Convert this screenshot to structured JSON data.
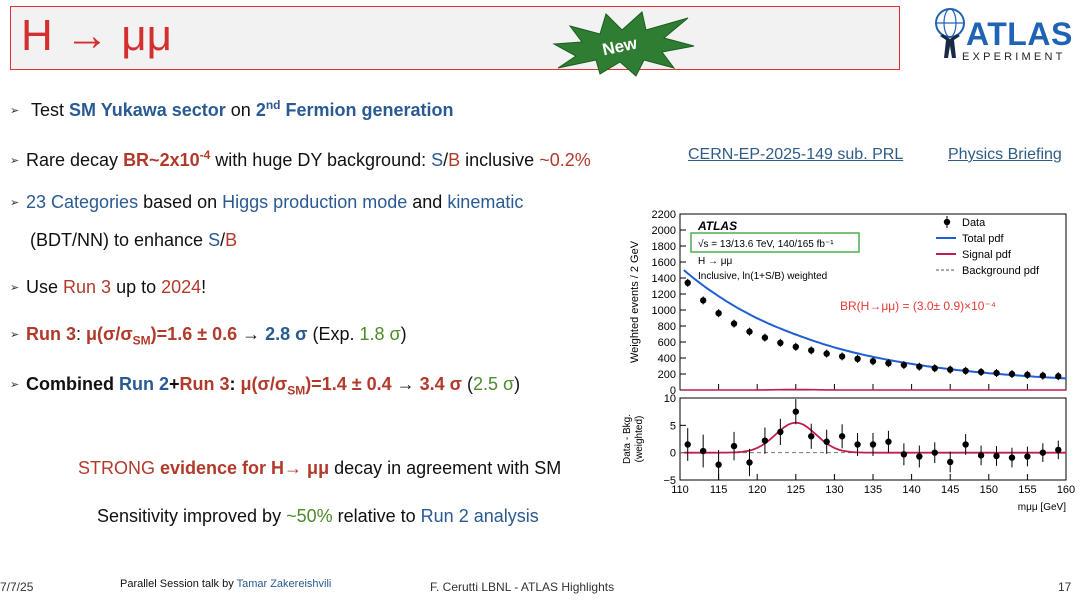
{
  "header": {
    "title": "H → μμ",
    "badge": "New",
    "logo_word": "ATLAS",
    "logo_sub": "EXPERIMENT",
    "colors": {
      "title_red": "#d32f2f",
      "badge_green": "#2e7d32",
      "atlas_blue": "#1f63b4"
    }
  },
  "bullets": {
    "b1": {
      "pre": "Test ",
      "sm_yukawa": "SM Yukawa sector",
      "mid": " on ",
      "ord": "2",
      "sup": "nd",
      "rest": " Fermion generation"
    },
    "b2": {
      "pre": "Rare decay ",
      "br": "BR~2x10",
      "br_sup": "-4",
      "mid": " with huge DY background: ",
      "s": "S",
      "slash": "/",
      "bg": "B",
      "incl": " inclusive ",
      "val": "~0.2%"
    },
    "b3": {
      "num": "23 Categories",
      "mid1": " based on ",
      "prod": "Higgs production mode",
      "and": " and ",
      "kin": "kinematic",
      "line2_pre": "(BDT/NN) to enhance ",
      "s": "S",
      "slash": "/",
      "bg": "B"
    },
    "b4": {
      "pre": "Use ",
      "run": "Run 3",
      "mid": " up to ",
      "year": "2024",
      "end": "!"
    },
    "b5": {
      "run": "Run 3",
      "colon": ": ",
      "mu": "μ(σ/σ",
      "sub": "SM",
      "val": ")=1.6 ± 0.6",
      "arrow": " → ",
      "sig": "2.8 σ",
      "exp_pre": " (Exp. ",
      "exp": "1.8 σ",
      "exp_end": ")"
    },
    "b6": {
      "comb": "Combined ",
      "run2": "Run 2",
      "plus": "+",
      "run3": "Run 3",
      "colon": ": ",
      "mu": "μ(σ/σ",
      "sub": "SM",
      "val": ")=1.4 ± 0.4",
      "arrow": " → ",
      "sig": "3.4 σ",
      "exp_pre": " (",
      "exp": "2.5 σ",
      "exp_end": ")"
    }
  },
  "links": {
    "paper": "CERN-EP-2025-149 sub. PRL",
    "briefing": "Physics Briefing"
  },
  "conclusion": {
    "l1_pre": "STRONG ",
    "l1_bold": "evidence for H→ μμ",
    "l1_end": " decay in agreement with SM",
    "l2_pre": "Sensitivity improved by ",
    "l2_val": "~50%",
    "l2_mid": " relative to ",
    "l2_run": "Run 2 analysis"
  },
  "footer": {
    "date": "7/7/25",
    "talk_pre": "Parallel Session talk by ",
    "speaker": "Tamar Zakereishvili",
    "center": "F. Cerutti LBNL - ATLAS Highlights",
    "page": "17"
  },
  "chart_data": [
    {
      "type": "scatter",
      "panel": "main",
      "xlabel": "",
      "ylabel": "Weighted events / 2 GeV",
      "xlim": [
        110,
        160
      ],
      "ylim": [
        0,
        2200
      ],
      "yticks": [
        "0",
        "200",
        "400",
        "600",
        "800",
        "1000",
        "1200",
        "1400",
        "1600",
        "1800",
        "2000",
        "2200"
      ],
      "annotations": {
        "atlas": "ATLAS",
        "energy": "√s = 13/13.6 TeV, 140/165 fb⁻¹",
        "process": "H → μμ",
        "weights": "Inclusive, ln(1+S/B) weighted",
        "br": "BR(H→μμ) = (3.0± 0.9)×10⁻⁴"
      },
      "legend": [
        "Data",
        "Total pdf",
        "Signal pdf",
        "Background pdf"
      ],
      "legend_position": "top-right",
      "x": [
        111,
        113,
        115,
        117,
        119,
        121,
        123,
        125,
        127,
        129,
        131,
        133,
        135,
        137,
        139,
        141,
        143,
        145,
        147,
        149,
        151,
        153,
        155,
        157,
        159
      ],
      "data": [
        1340,
        1120,
        960,
        830,
        730,
        655,
        590,
        540,
        495,
        455,
        420,
        390,
        360,
        335,
        312,
        292,
        272,
        255,
        240,
        225,
        212,
        200,
        190,
        180,
        172
      ],
      "colors": {
        "total": "#1f5fd6",
        "signal": "#c21d4a",
        "background": "#777777"
      }
    },
    {
      "type": "scatter",
      "panel": "ratio",
      "xlabel": "mμμ [GeV]",
      "ylabel": "Data - Bkg. (weighted)",
      "xlim": [
        110,
        160
      ],
      "ylim": [
        -5,
        10
      ],
      "xticks": [
        "110",
        "115",
        "120",
        "125",
        "130",
        "135",
        "140",
        "145",
        "150",
        "155",
        "160"
      ],
      "yticks": [
        "−5",
        "0",
        "5",
        "10"
      ],
      "x": [
        111,
        113,
        115,
        117,
        119,
        121,
        123,
        125,
        127,
        129,
        131,
        133,
        135,
        137,
        139,
        141,
        143,
        145,
        147,
        149,
        151,
        153,
        155,
        157,
        159
      ],
      "values": [
        1.5,
        0.3,
        -2.2,
        1.2,
        -1.8,
        2.2,
        3.8,
        7.5,
        3.0,
        2.0,
        3.0,
        1.5,
        1.5,
        2.0,
        -0.3,
        -0.7,
        0.0,
        -1.7,
        1.5,
        -0.5,
        -0.6,
        -0.9,
        -0.7,
        0.0,
        0.5
      ],
      "errors": [
        3.0,
        3.0,
        2.7,
        2.6,
        2.5,
        2.4,
        2.4,
        2.3,
        2.3,
        2.2,
        2.2,
        2.1,
        2.1,
        2.0,
        2.0,
        2.0,
        1.9,
        1.9,
        1.9,
        1.8,
        1.8,
        1.8,
        1.8,
        1.7,
        1.7
      ],
      "signal_peak": 125,
      "signal_amp": 5.5
    }
  ]
}
